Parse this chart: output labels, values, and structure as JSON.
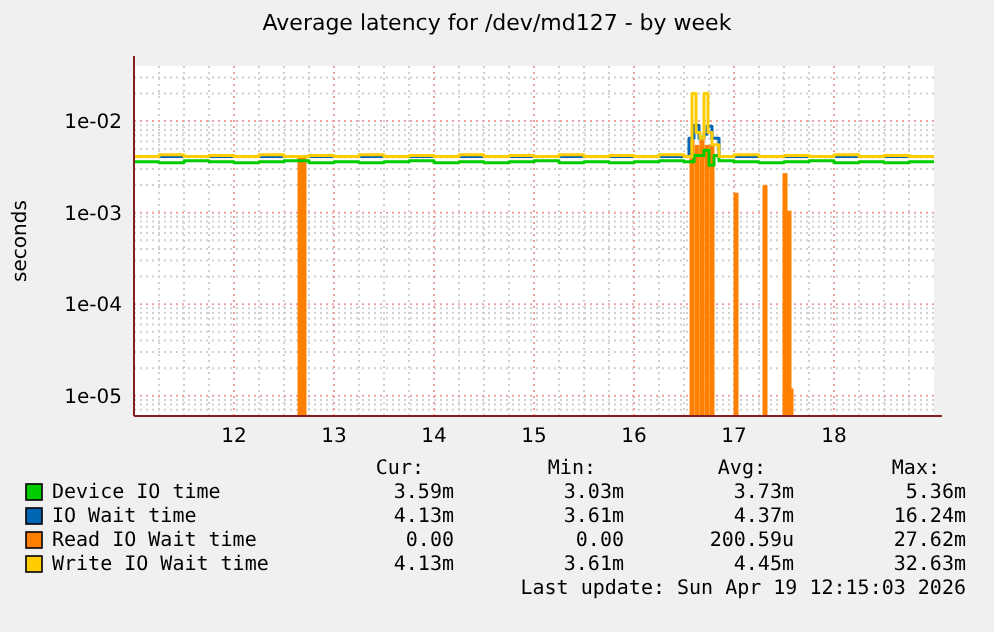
{
  "chart_data": {
    "type": "step",
    "title": "Average latency for /dev/md127 - by week",
    "ylabel": "seconds",
    "log": true,
    "grid": true,
    "legend": "bottom",
    "xlim": [
      11,
      19
    ],
    "xticks": [
      12,
      13,
      14,
      15,
      16,
      17,
      18
    ],
    "ylim": [
      6e-06,
      0.04
    ],
    "yticks": [
      {
        "value": 1e-05,
        "label": "1e-05"
      },
      {
        "value": 0.0001,
        "label": "1e-04"
      },
      {
        "value": 0.001,
        "label": "1e-03"
      },
      {
        "value": 0.01,
        "label": "1e-02"
      }
    ],
    "series": [
      {
        "name": "Device IO time",
        "color": "#00cc00",
        "x": [
          11,
          11.25,
          11.5,
          11.75,
          12,
          12.25,
          12.5,
          12.75,
          13,
          13.25,
          13.5,
          13.75,
          14,
          14.25,
          14.5,
          14.75,
          15,
          15.25,
          15.5,
          15.75,
          16,
          16.25,
          16.5,
          16.6,
          16.7,
          16.75,
          16.8,
          16.85,
          17,
          17.25,
          17.5,
          17.75,
          18,
          18.25,
          18.5,
          18.75,
          19
        ],
        "values": [
          0.0036,
          0.0035,
          0.0037,
          0.0036,
          0.0035,
          0.0036,
          0.0037,
          0.0035,
          0.0036,
          0.0035,
          0.0036,
          0.0037,
          0.0035,
          0.0036,
          0.0035,
          0.0036,
          0.0037,
          0.0035,
          0.0036,
          0.0035,
          0.0036,
          0.0037,
          0.0036,
          0.0042,
          0.0048,
          0.0033,
          0.0042,
          0.0037,
          0.0036,
          0.0035,
          0.0036,
          0.0037,
          0.0035,
          0.0036,
          0.0035,
          0.0036,
          0.0036
        ]
      },
      {
        "name": "IO Wait time",
        "color": "#0066b3",
        "x": [
          11,
          16.55,
          16.6,
          16.65,
          16.7,
          16.73,
          16.78,
          16.85,
          19
        ],
        "values": [
          0.0041,
          0.0065,
          0.009,
          0.0065,
          0.0072,
          0.0088,
          0.0065,
          0.0041,
          0.0041
        ]
      },
      {
        "name": "Read IO Wait time",
        "color": "#ff8000",
        "type": "bar",
        "x": [
          12.66,
          12.7,
          16.58,
          16.63,
          16.68,
          16.73,
          16.78,
          17.02,
          17.31,
          17.51,
          17.55,
          17.57
        ],
        "values": [
          0.0041,
          0.0041,
          0.0062,
          0.0055,
          0.0062,
          0.0055,
          0.0055,
          0.00165,
          0.002,
          0.0027,
          0.00105,
          1.2e-05
        ]
      },
      {
        "name": "Write IO Wait time",
        "color": "#ffcc00",
        "x": [
          11,
          11.25,
          11.5,
          11.75,
          12,
          12.25,
          12.5,
          12.75,
          13,
          13.25,
          13.5,
          13.75,
          14,
          14.25,
          14.5,
          14.75,
          15,
          15.25,
          15.5,
          15.75,
          16,
          16.25,
          16.5,
          16.58,
          16.62,
          16.66,
          16.7,
          16.74,
          16.78,
          16.85,
          17,
          17.25,
          17.5,
          17.75,
          18,
          18.25,
          18.5,
          18.75,
          19
        ],
        "values": [
          0.0041,
          0.0043,
          0.0041,
          0.0042,
          0.0041,
          0.0043,
          0.0041,
          0.0042,
          0.0041,
          0.0043,
          0.0041,
          0.0042,
          0.0041,
          0.0043,
          0.0041,
          0.0042,
          0.0041,
          0.0043,
          0.0041,
          0.0042,
          0.0041,
          0.0043,
          0.0041,
          0.02,
          0.0075,
          0.0065,
          0.02,
          0.0075,
          0.0055,
          0.0041,
          0.0043,
          0.0041,
          0.0042,
          0.0041,
          0.0043,
          0.0041,
          0.0042,
          0.0041,
          0.0041
        ]
      }
    ],
    "annotations": [
      "Cur:",
      "Min:",
      "Avg:",
      "Max:",
      "3.59m",
      "3.03m",
      "3.73m",
      "5.36m",
      "4.13m",
      "3.61m",
      "4.37m",
      "16.24m",
      "0.00",
      "0.00",
      "200.59u",
      "27.62m",
      "4.13m",
      "3.61m",
      "4.45m",
      "32.63m",
      "Last update: Sun Apr 19 12:15:03 2026"
    ]
  }
}
